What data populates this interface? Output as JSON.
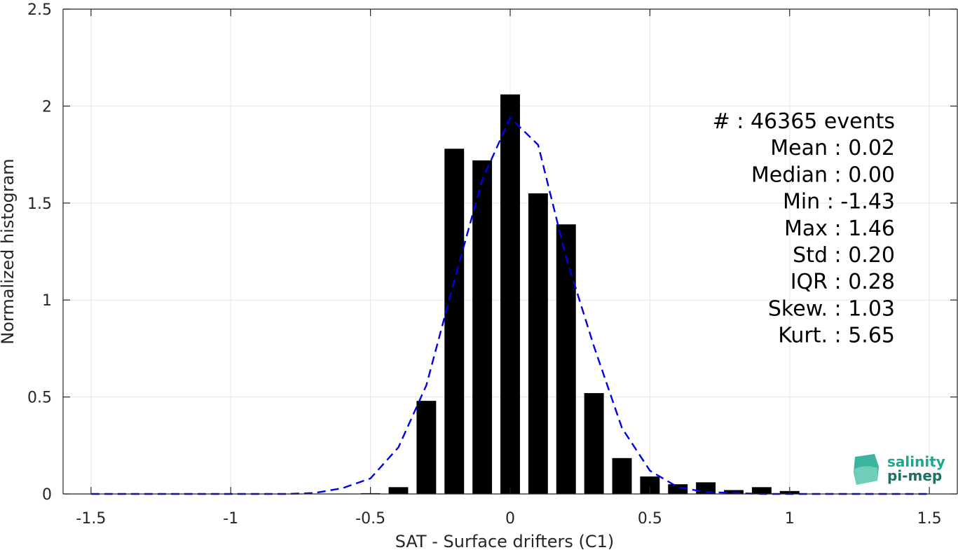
{
  "chart_data": {
    "type": "bar",
    "xlabel": "SAT - Surface drifters (C1)",
    "ylabel": "Normalized histogram",
    "xlim": [
      -1.6,
      1.6
    ],
    "ylim": [
      0,
      2.5
    ],
    "xticks": [
      -1.5,
      -1,
      -0.5,
      0,
      0.5,
      1,
      1.5
    ],
    "xtick_labels": [
      "-1.5",
      "-1",
      "-0.5",
      "0",
      "0.5",
      "1",
      "1.5"
    ],
    "yticks": [
      0,
      0.5,
      1,
      1.5,
      2,
      2.5
    ],
    "ytick_labels": [
      "0",
      "0.5",
      "1",
      "1.5",
      "2",
      "2.5"
    ],
    "grid": true,
    "bar_width": 0.07,
    "bars": {
      "x": [
        -0.6,
        -0.5,
        -0.4,
        -0.3,
        -0.2,
        -0.1,
        0.0,
        0.1,
        0.2,
        0.3,
        0.4,
        0.5,
        0.6,
        0.7,
        0.8,
        0.9,
        1.0
      ],
      "values": [
        0.002,
        0.004,
        0.035,
        0.48,
        1.78,
        1.72,
        2.06,
        1.55,
        1.39,
        0.52,
        0.185,
        0.09,
        0.05,
        0.06,
        0.02,
        0.035,
        0.015
      ],
      "color": "#000000"
    },
    "fit_line": {
      "style": "dashed",
      "color": "#0000e6",
      "x": [
        -1.5,
        -1.4,
        -1.3,
        -1.2,
        -1.1,
        -1.0,
        -0.9,
        -0.8,
        -0.7,
        -0.6,
        -0.5,
        -0.4,
        -0.3,
        -0.2,
        -0.1,
        0.0,
        0.1,
        0.2,
        0.3,
        0.4,
        0.5,
        0.6,
        0.7,
        0.8,
        0.9,
        1.0,
        1.1,
        1.2,
        1.3,
        1.4,
        1.5
      ],
      "y": [
        0,
        0,
        0,
        0,
        0,
        0,
        0,
        0,
        0.005,
        0.03,
        0.08,
        0.24,
        0.56,
        1.1,
        1.62,
        1.94,
        1.8,
        1.22,
        0.76,
        0.34,
        0.12,
        0.035,
        0.01,
        0.005,
        0,
        0,
        0,
        0,
        0,
        0,
        0
      ]
    },
    "stats": [
      {
        "label": "#  : 46365 events"
      },
      {
        "label": "Mean : 0.02"
      },
      {
        "label": "Median : 0.00"
      },
      {
        "label": "Min : -1.43"
      },
      {
        "label": "Max : 1.46"
      },
      {
        "label": "Std : 0.20"
      },
      {
        "label": "IQR : 0.28"
      },
      {
        "label": "Skew. : 1.03"
      },
      {
        "label": "Kurt. : 5.65"
      }
    ]
  },
  "logo": {
    "line1": "salinity",
    "line2": "pi-mep",
    "color1": "#1aa88f",
    "color2": "#1e6e63"
  },
  "colors": {
    "axis": "#262626",
    "grid": "#e6e6e6"
  }
}
